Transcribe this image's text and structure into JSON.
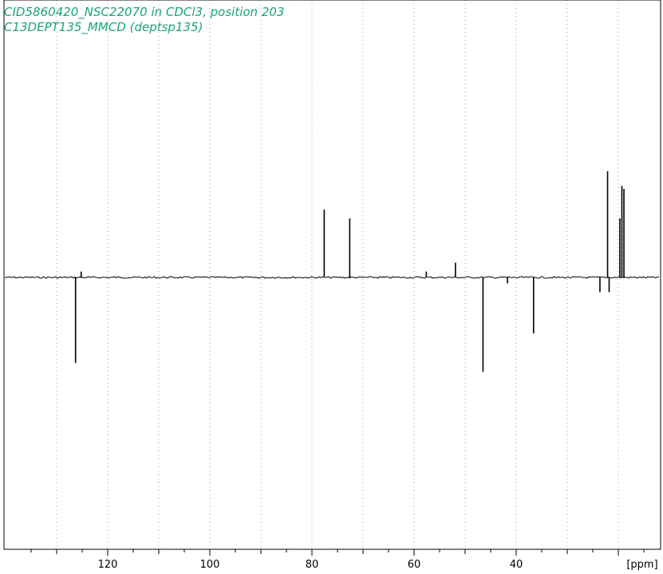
{
  "header": {
    "line1": "CID5860420_NSC22070 in CDCl3, position 203",
    "line2": "C13DEPT135_MMCD (deptsp135)"
  },
  "colors": {
    "title": "#1aa37a",
    "trace": "#000000",
    "grid": "#a0a0a0"
  },
  "chart_data": {
    "type": "line",
    "title": "",
    "xlabel": "[ppm]",
    "ylabel": "",
    "x_reversed": true,
    "xlim": [
      140,
      15
    ],
    "ylim": [
      -1,
      1
    ],
    "grid": {
      "x": true,
      "y": false
    },
    "x_ticks": [
      120,
      100,
      80,
      60,
      40
    ],
    "x_tick_labels": [
      "120",
      "100",
      "80",
      "60",
      "40"
    ],
    "peaks": [
      {
        "ppm": 126.3,
        "intensity": -0.29
      },
      {
        "ppm": 125.2,
        "intensity": 0.02
      },
      {
        "ppm": 77.6,
        "intensity": 0.23
      },
      {
        "ppm": 72.6,
        "intensity": 0.2
      },
      {
        "ppm": 57.6,
        "intensity": 0.02
      },
      {
        "ppm": 51.9,
        "intensity": 0.05
      },
      {
        "ppm": 46.5,
        "intensity": -0.32
      },
      {
        "ppm": 41.7,
        "intensity": -0.02
      },
      {
        "ppm": 36.6,
        "intensity": -0.19
      },
      {
        "ppm": 23.6,
        "intensity": -0.05
      },
      {
        "ppm": 22.1,
        "intensity": 0.36
      },
      {
        "ppm": 21.8,
        "intensity": -0.05
      },
      {
        "ppm": 19.7,
        "intensity": 0.2
      },
      {
        "ppm": 19.3,
        "intensity": 0.31
      },
      {
        "ppm": 18.9,
        "intensity": 0.3
      }
    ]
  }
}
